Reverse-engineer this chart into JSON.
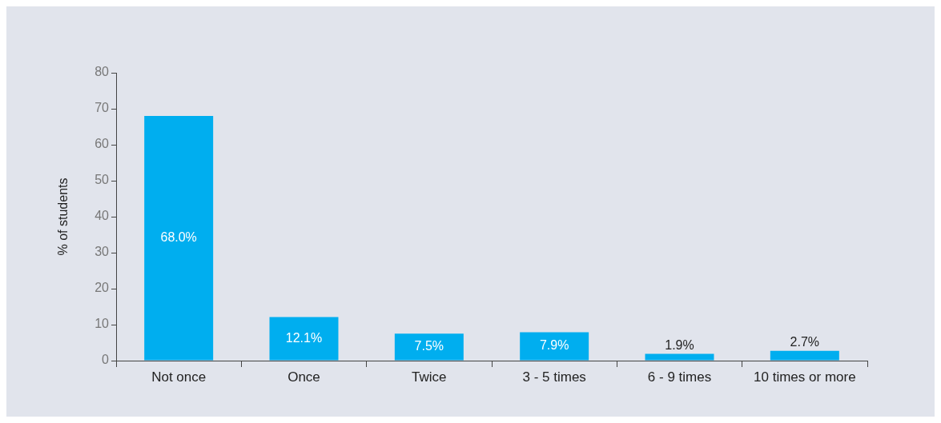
{
  "chart_data": {
    "type": "bar",
    "ylabel": "% of students",
    "categories": [
      "Not once",
      "Once",
      "Twice",
      "3 - 5 times",
      "6 - 9 times",
      "10 times or more"
    ],
    "values": [
      68.0,
      12.1,
      7.5,
      7.9,
      1.9,
      2.7
    ],
    "value_labels": [
      "68.0%",
      "12.1%",
      "7.5%",
      "7.9%",
      "1.9%",
      "2.7%"
    ],
    "color": "#00aeef",
    "ylim": [
      0,
      80
    ],
    "yticks": [
      0,
      10,
      20,
      30,
      40,
      50,
      60,
      70,
      80
    ]
  }
}
